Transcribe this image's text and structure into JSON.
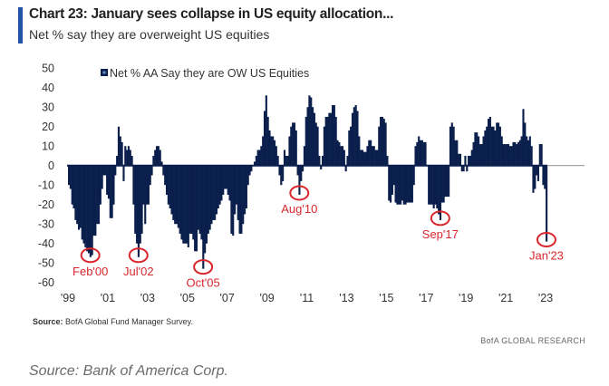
{
  "chart_data": {
    "type": "bar",
    "title": "Chart 23: January sees collapse in US equity allocation...",
    "subtitle": "Net % say they are overweight US equities",
    "legend": "Net % AA Say they are OW US Equities",
    "legend_placement": "top",
    "ylim": [
      -60,
      50
    ],
    "yticks": [
      "50",
      "40",
      "30",
      "20",
      "10",
      "0",
      "-10",
      "-20",
      "-30",
      "-40",
      "-50",
      "-60"
    ],
    "xticks": [
      "'99",
      "'01",
      "'03",
      "'05",
      "'07",
      "'09",
      "'11",
      "'13",
      "'15",
      "'17",
      "'19",
      "'21",
      "'23"
    ],
    "xlim": [
      "1999-01",
      "2023-06"
    ],
    "frequency": "monthly",
    "grid": false,
    "bar_color": "#0b1f4d",
    "annotation_color": "#d9262c",
    "values_by_year": {
      "1999": [
        -10,
        -12,
        -20,
        -22,
        -28,
        -30,
        -33,
        -32,
        -38,
        -40,
        -42,
        -44
      ],
      "2000": [
        -45,
        -47,
        -46,
        -36,
        -36,
        -30,
        -30,
        -20,
        -12,
        -5,
        -5,
        -15
      ],
      "2001": [
        -17,
        -27,
        -27,
        -20,
        -5,
        5,
        20,
        15,
        12,
        -8,
        10,
        8
      ],
      "2002": [
        10,
        8,
        5,
        -20,
        -35,
        -40,
        -47,
        -40,
        -35,
        -20,
        -30,
        -20
      ],
      "2003": [
        -20,
        -10,
        -5,
        5,
        8,
        10,
        10,
        8,
        2,
        -5,
        -10,
        -15
      ],
      "2004": [
        -20,
        -22,
        -25,
        -28,
        -30,
        -30,
        -32,
        -35,
        -38,
        -40,
        -40,
        -40
      ],
      "2005": [
        -42,
        -35,
        -35,
        -38,
        -44,
        -44,
        -33,
        -35,
        -38,
        -53,
        -45,
        -40
      ],
      "2006": [
        -35,
        -33,
        -30,
        -28,
        -28,
        -25,
        -22,
        -20,
        -18,
        -15,
        -12,
        -12
      ],
      "2007": [
        -15,
        -18,
        -35,
        -36,
        -25,
        -20,
        -28,
        -35,
        -35,
        -30,
        -25,
        -22
      ],
      "2008": [
        -10,
        -5,
        -3,
        0,
        2,
        5,
        8,
        8,
        10,
        15,
        28,
        36
      ],
      "2009": [
        25,
        18,
        15,
        15,
        13,
        10,
        5,
        -5,
        -10,
        -8,
        8,
        5
      ],
      "2010": [
        5,
        15,
        20,
        22,
        22,
        18,
        -5,
        -15,
        -8,
        -3,
        10,
        25
      ],
      "2011": [
        30,
        36,
        35,
        30,
        27,
        22,
        20,
        5,
        -2,
        5,
        20,
        25
      ],
      "2012": [
        25,
        27,
        27,
        31,
        31,
        25,
        13,
        12,
        10,
        10,
        8,
        -3
      ],
      "2013": [
        5,
        18,
        20,
        27,
        30,
        31,
        28,
        15,
        8,
        8,
        7,
        7
      ],
      "2014": [
        10,
        13,
        13,
        10,
        10,
        8,
        8,
        20,
        25,
        25,
        24,
        22
      ],
      "2015": [
        5,
        -18,
        -19,
        -15,
        -10,
        -19,
        -20,
        -20,
        -20,
        -18,
        -20,
        -20
      ],
      "2016": [
        -19,
        -19,
        -19,
        -19,
        -10,
        10,
        12,
        15,
        13,
        13,
        12,
        12
      ],
      "2017": [
        0,
        -20,
        -20,
        -20,
        -22,
        -20,
        -22,
        -25,
        -28,
        -19,
        -19,
        -16
      ],
      "2018": [
        -16,
        -16,
        20,
        22,
        20,
        13,
        13,
        6,
        6,
        -3,
        -3,
        5
      ],
      "2019": [
        -3,
        5,
        5,
        8,
        12,
        17,
        17,
        15,
        11,
        11,
        15,
        18
      ],
      "2020": [
        20,
        24,
        25,
        20,
        20,
        18,
        22,
        22,
        20,
        15,
        11,
        11
      ],
      "2021": [
        11,
        11,
        10,
        10,
        12,
        12,
        11,
        12,
        13,
        15,
        29,
        22
      ],
      "2022": [
        15,
        13,
        15,
        10,
        -14,
        -12,
        -5,
        -8,
        11,
        11,
        -10,
        -12
      ],
      "2023": [
        -39
      ]
    },
    "annotations": [
      {
        "label": "Feb'00",
        "date": "2000-02",
        "value": -47
      },
      {
        "label": "Jul'02",
        "date": "2002-07",
        "value": -47
      },
      {
        "label": "Oct'05",
        "date": "2005-10",
        "value": -53
      },
      {
        "label": "Aug'10",
        "date": "2010-08",
        "value": -15
      },
      {
        "label": "Sep'17",
        "date": "2017-09",
        "value": -28
      },
      {
        "label": "Jan'23",
        "date": "2023-01",
        "value": -39
      }
    ]
  },
  "footer": {
    "source_label": "Source:",
    "source_text": "BofA Global Fund Manager Survey.",
    "brand": "BofA GLOBAL RESEARCH",
    "caption": "Source: Bank of America Corp."
  }
}
